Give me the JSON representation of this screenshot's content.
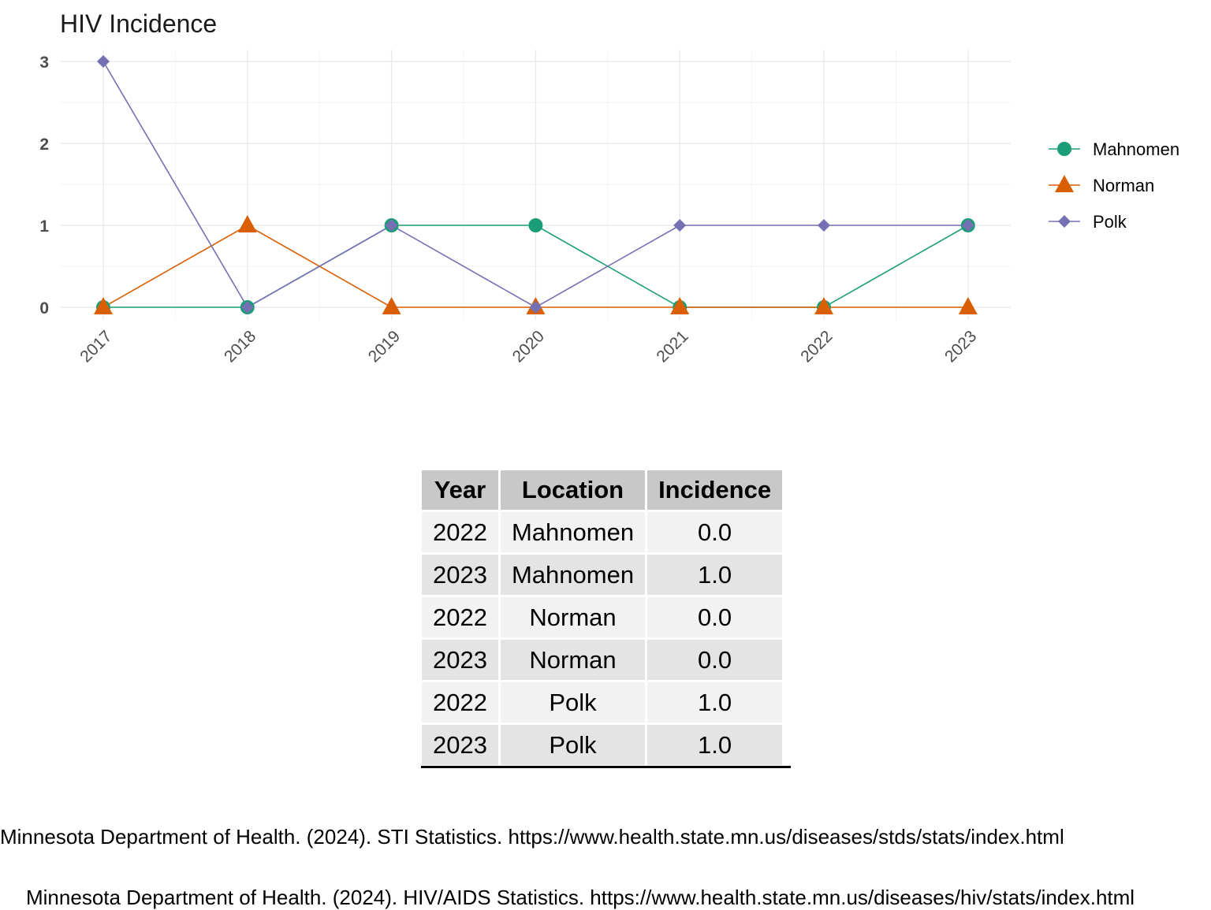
{
  "chart_data": {
    "type": "line",
    "title": "HIV Incidence",
    "xlabel": "",
    "ylabel": "",
    "x": [
      "2017",
      "2018",
      "2019",
      "2020",
      "2021",
      "2022",
      "2023"
    ],
    "y_ticks": [
      "0",
      "1",
      "2",
      "3"
    ],
    "ylim": [
      0,
      3
    ],
    "grid": true,
    "legend_position": "right",
    "series": [
      {
        "name": "Mahnomen",
        "values": [
          0,
          0,
          1,
          1,
          0,
          0,
          1
        ],
        "color": "#1b9e77",
        "marker": "circle"
      },
      {
        "name": "Norman",
        "values": [
          0,
          1,
          0,
          0,
          0,
          0,
          0
        ],
        "color": "#d95f02",
        "marker": "triangle"
      },
      {
        "name": "Polk",
        "values": [
          3,
          0,
          1,
          0,
          1,
          1,
          1
        ],
        "color": "#7570b3",
        "marker": "diamond"
      }
    ]
  },
  "table": {
    "headers": [
      "Year",
      "Location",
      "Incidence"
    ],
    "rows": [
      [
        "2022",
        "Mahnomen",
        "0.0"
      ],
      [
        "2023",
        "Mahnomen",
        "1.0"
      ],
      [
        "2022",
        "Norman",
        "0.0"
      ],
      [
        "2023",
        "Norman",
        "0.0"
      ],
      [
        "2022",
        "Polk",
        "1.0"
      ],
      [
        "2023",
        "Polk",
        "1.0"
      ]
    ]
  },
  "sources": [
    "Minnesota Department of Health. (2024). STI Statistics. https://www.health.state.mn.us/diseases/stds/stats/index.html",
    "Minnesota Department of Health. (2024). HIV/AIDS Statistics. https://www.health.state.mn.us/diseases/hiv/stats/index.html"
  ]
}
